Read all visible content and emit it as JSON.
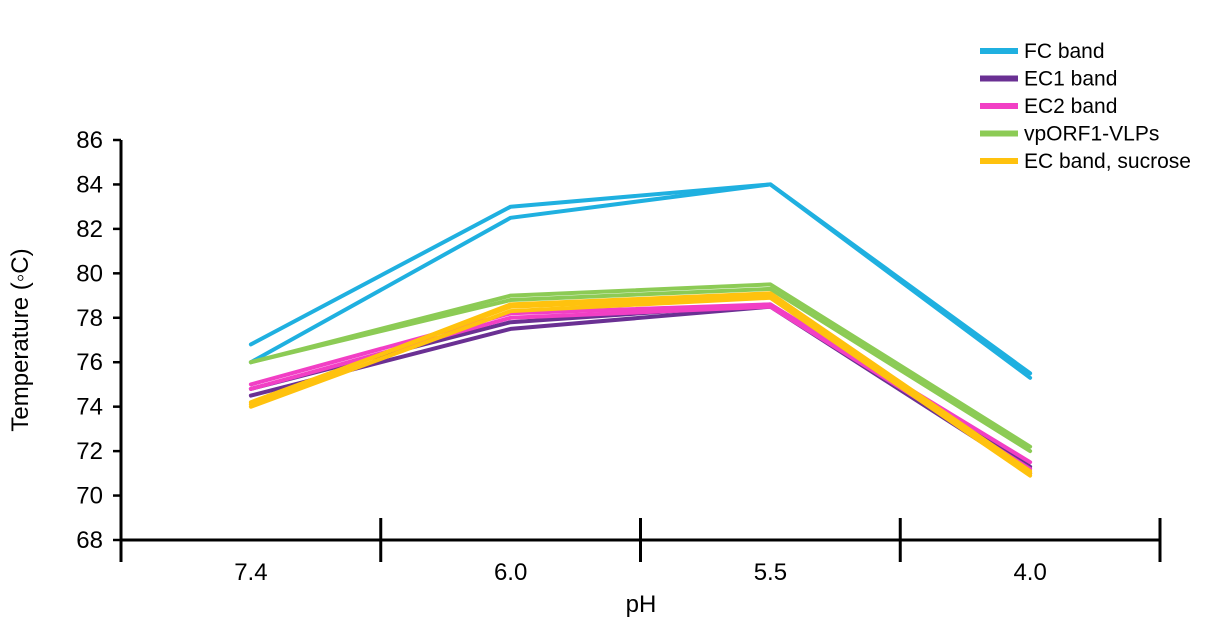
{
  "chart_data": {
    "type": "line",
    "title": "",
    "xlabel": "pH",
    "ylabel": "Temperature (◦C)",
    "categories": [
      "7.4",
      "6.0",
      "5.5",
      "4.0"
    ],
    "yticks": [
      "86",
      "84",
      "82",
      "80",
      "78",
      "76",
      "74",
      "72",
      "70",
      "68"
    ],
    "ylim": [
      68,
      86
    ],
    "grid": false,
    "legend_position": "top-right",
    "series": [
      {
        "name": "FC band",
        "color": "#1FB0E0",
        "lines": [
          [
            76.8,
            83.0,
            84.0,
            75.5
          ],
          [
            76.0,
            82.5,
            84.0,
            75.3
          ]
        ]
      },
      {
        "name": "EC1 band",
        "color": "#6A3093",
        "lines": [
          [
            74.8,
            77.8,
            78.6,
            71.3
          ],
          [
            74.5,
            77.5,
            78.5,
            71.0
          ]
        ]
      },
      {
        "name": "EC2 band",
        "color": "#F23FC5",
        "lines": [
          [
            75.0,
            78.2,
            78.6,
            71.5
          ],
          [
            74.8,
            78.0,
            78.5,
            71.2
          ]
        ]
      },
      {
        "name": "vpORF1-VLPs",
        "color": "#8CCB55",
        "lines": [
          [
            76.0,
            79.0,
            79.5,
            72.2
          ],
          [
            76.0,
            78.8,
            79.3,
            72.0
          ]
        ]
      },
      {
        "name": "EC band, sucrose",
        "color": "#FFC20E",
        "lines": [
          [
            74.2,
            78.5,
            79.0,
            71.0
          ],
          [
            74.0,
            78.3,
            78.9,
            70.9
          ],
          [
            74.1,
            78.6,
            79.1,
            71.1
          ]
        ]
      }
    ]
  }
}
